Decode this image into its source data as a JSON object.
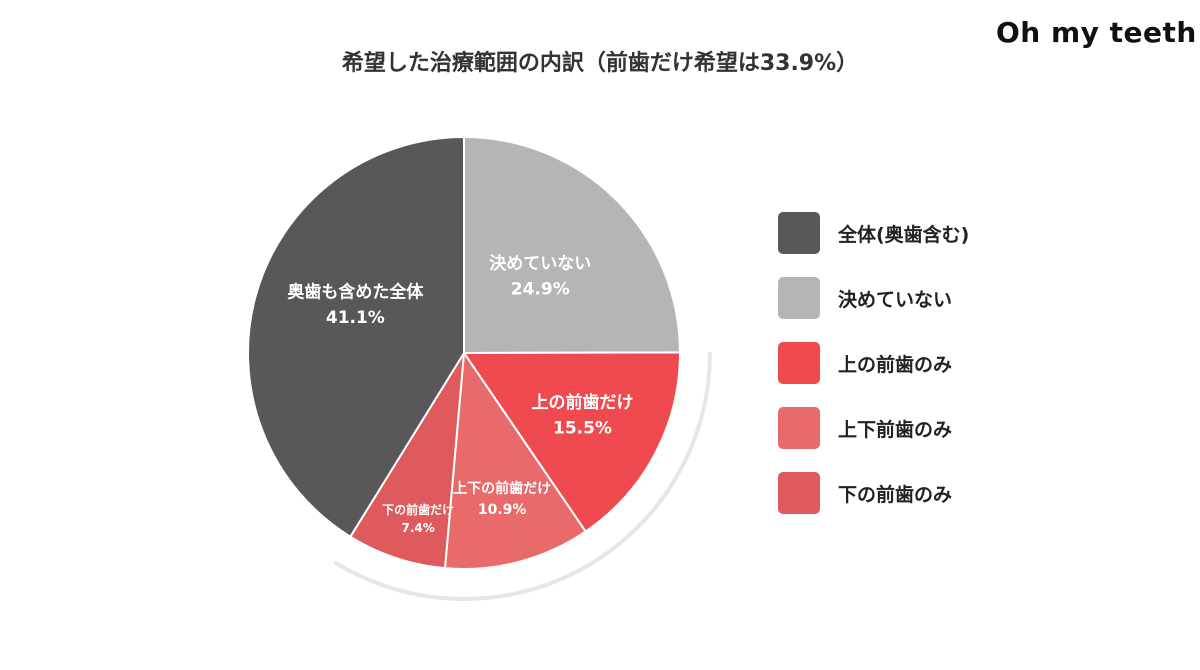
{
  "brand": {
    "logo_text": "Oh my teeth"
  },
  "colors": {
    "zentai": "#59575a",
    "kimete": "#b5b4b6",
    "ue": "#ef4a4f",
    "jouge": "#e86a6a",
    "shita": "#de5a5c",
    "label_text": "#ffffff"
  },
  "chart_data": {
    "type": "pie",
    "title": "希望した治療範囲の内訳（前歯だけ希望は33.9%）",
    "start_angle_deg": 0,
    "direction": "clockwise",
    "slices": [
      {
        "label": "決めていない",
        "value": 24.9,
        "value_label": "24.9%",
        "color": "#b5b4b6"
      },
      {
        "label": "上の前歯だけ",
        "value": 15.5,
        "value_label": "15.5%",
        "color": "#ef4a4f"
      },
      {
        "label": "上下の前歯だけ",
        "value": 10.9,
        "value_label": "10.9%",
        "color": "#e86a6a"
      },
      {
        "label": "下の前歯だけ",
        "value": 7.4,
        "value_label": "7.4%",
        "color": "#de5a5c"
      },
      {
        "label": "奥歯も含めた全体",
        "value": 41.1,
        "value_label": "41.1%",
        "color": "#59575a"
      }
    ],
    "legend": {
      "placement": "right",
      "items": [
        {
          "label": "全体(奥歯含む)",
          "color": "#59575a"
        },
        {
          "label": "決めていない",
          "color": "#b5b4b6"
        },
        {
          "label": "上の前歯のみ",
          "color": "#ef4a4f"
        },
        {
          "label": "上下前歯のみ",
          "color": "#e86a6a"
        },
        {
          "label": "下の前歯のみ",
          "color": "#de5a5c"
        }
      ]
    }
  }
}
